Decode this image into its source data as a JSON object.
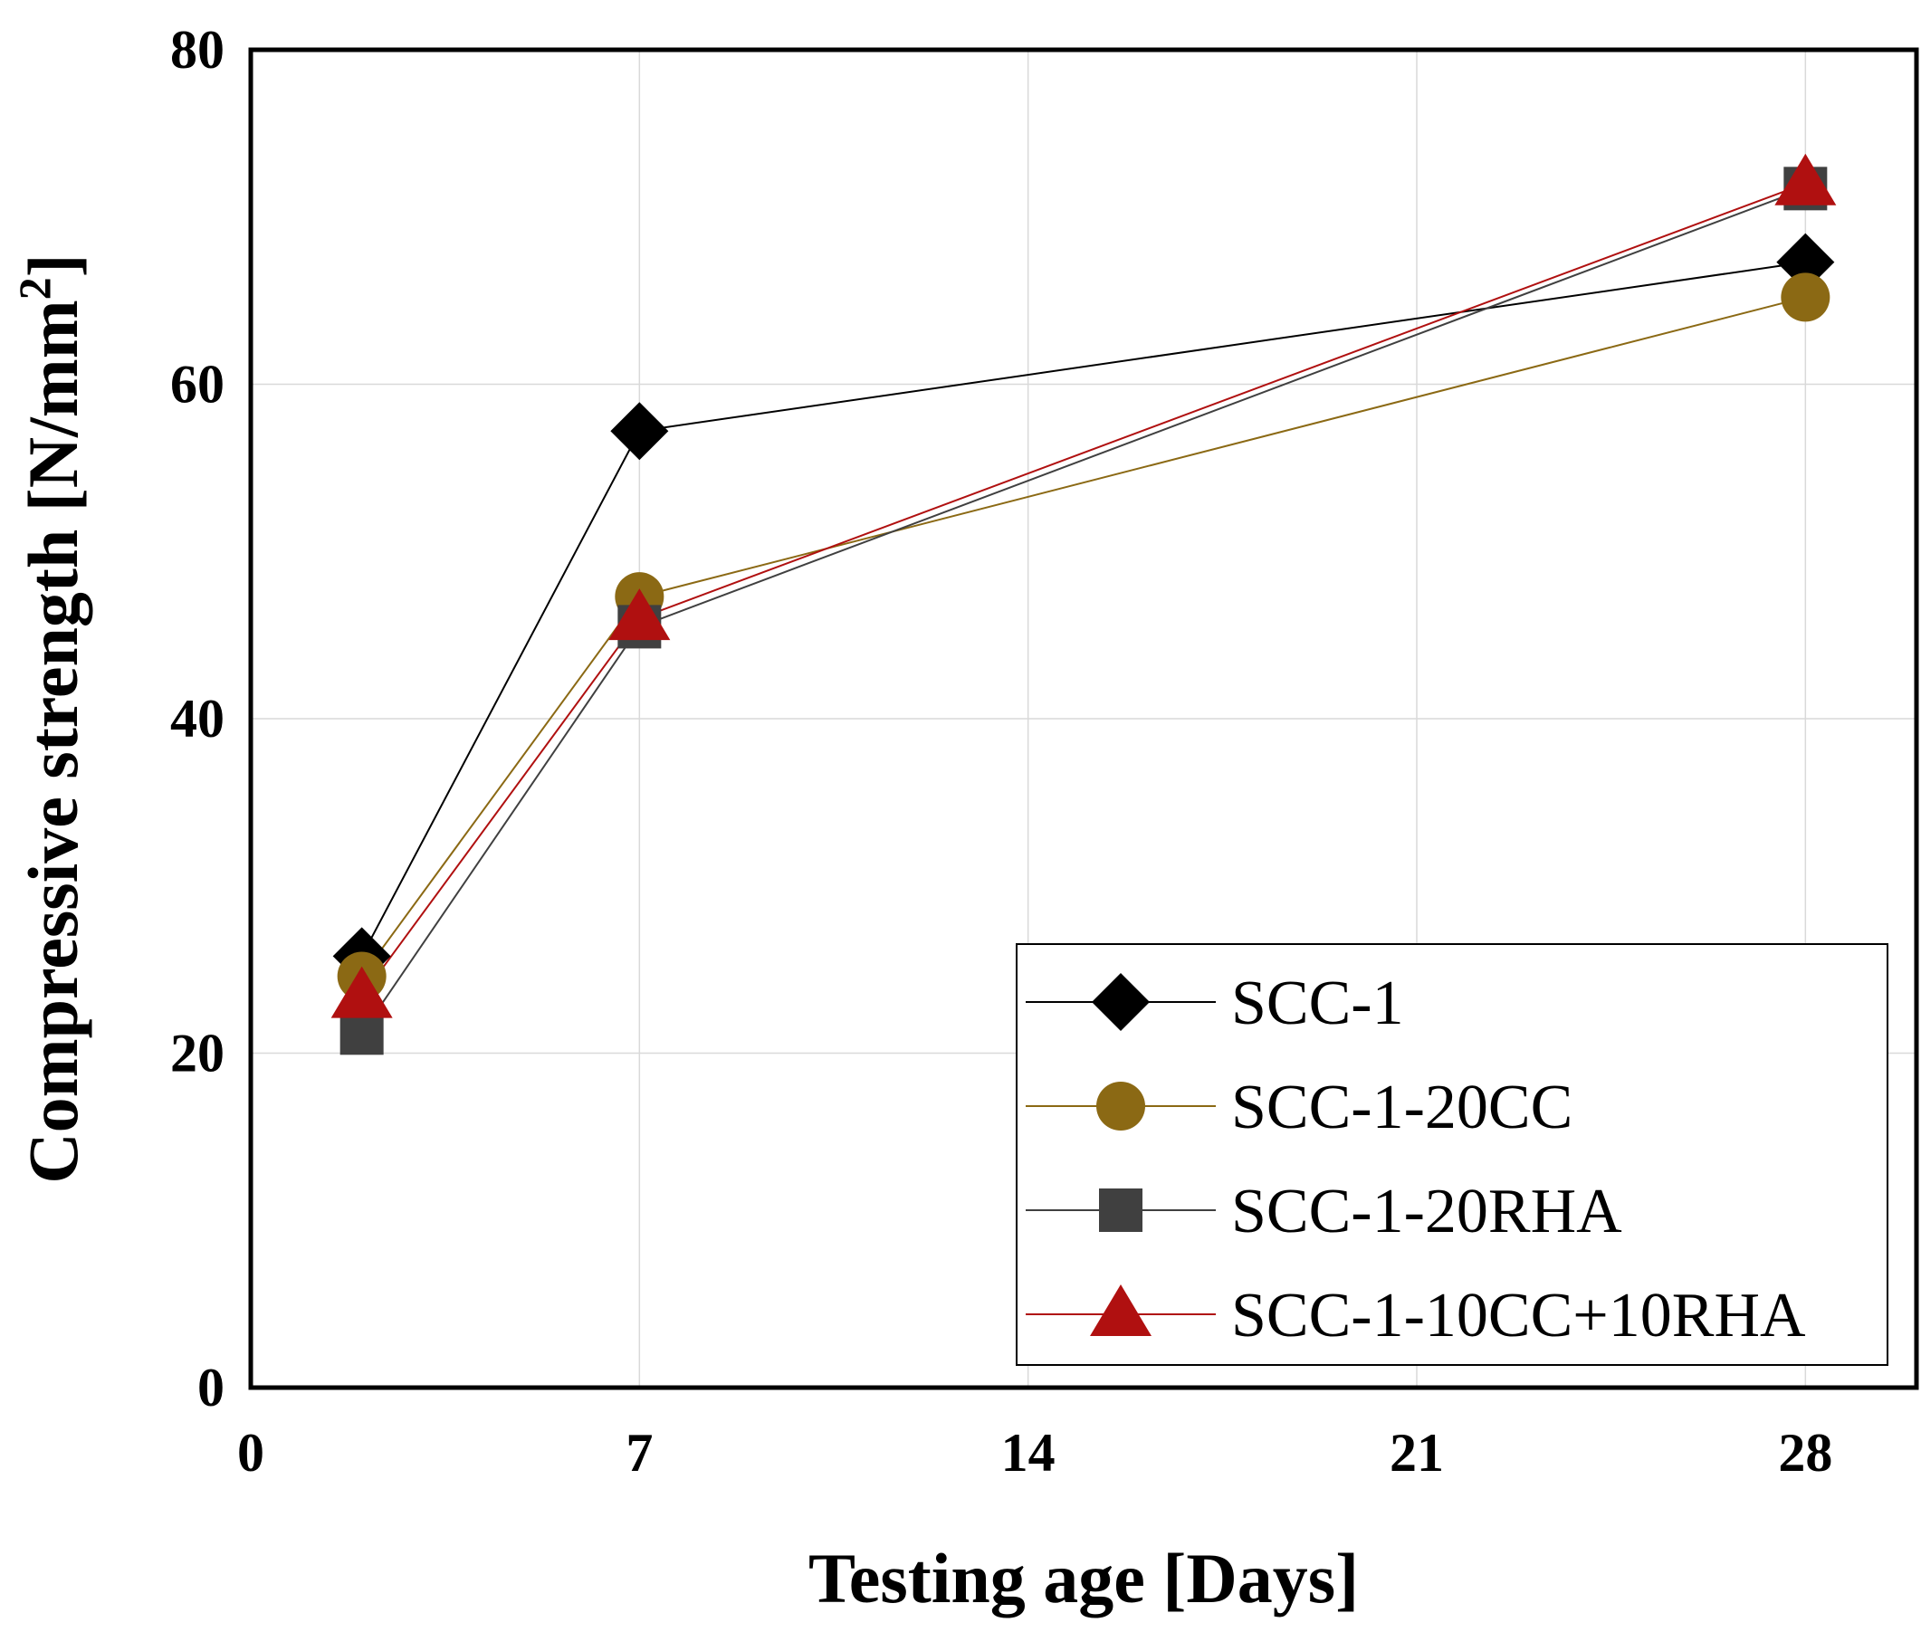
{
  "chart_data": {
    "type": "line",
    "title": "",
    "xlabel": "Testing age [Days]",
    "ylabel": "Compressive strength [N/mm",
    "ylabel_superscript": "2",
    "ylabel_end": "]",
    "xlim": [
      0,
      30
    ],
    "ylim": [
      0,
      80
    ],
    "xticks": [
      0,
      7,
      14,
      21,
      28
    ],
    "yticks": [
      0,
      20,
      40,
      60,
      80
    ],
    "grid": true,
    "legend_position": "bottom-right",
    "x": [
      2,
      7,
      28
    ],
    "series": [
      {
        "name": "SCC-1",
        "values": [
          25.8,
          57.2,
          67.3
        ],
        "color": "#000000",
        "marker": "diamond"
      },
      {
        "name": "SCC-1-20CC",
        "values": [
          24.6,
          47.3,
          65.2
        ],
        "color": "#8b6914",
        "marker": "circle"
      },
      {
        "name": "SCC-1-20RHA",
        "values": [
          21.2,
          45.5,
          71.7
        ],
        "color": "#404040",
        "marker": "square"
      },
      {
        "name": "SCC-1-10CC+10RHA",
        "values": [
          23.4,
          46.0,
          72.0
        ],
        "color": "#b01010",
        "marker": "triangle"
      }
    ]
  }
}
